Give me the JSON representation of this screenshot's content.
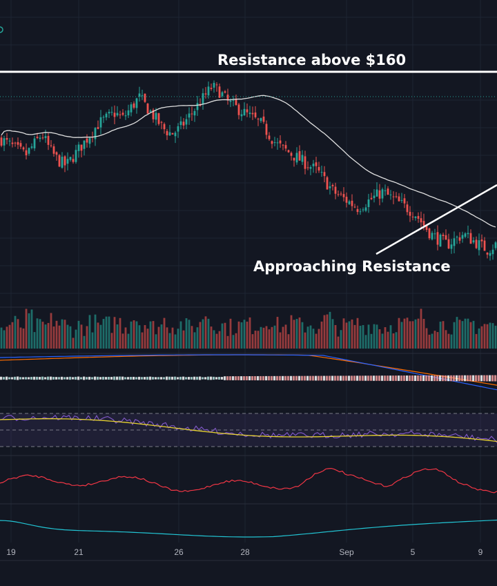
{
  "chart_data": {
    "type": "candlestick",
    "colors": {
      "background": "#131722",
      "up": "#26a69a",
      "down": "#ef5350",
      "grid": "#1e2433",
      "annotation": "#ffffff",
      "ma": "#e0e0e0",
      "macd_line": "#2962ff",
      "signal_line": "#ff6d00",
      "rsi": "#7e57c2",
      "rsi_ma": "#e8d32f",
      "osc_red": "#f23645",
      "osc_teal": "#22c5d4"
    },
    "x_axis": {
      "tick_labels": [
        "19",
        "21",
        "26",
        "28",
        "Sep",
        "5",
        "9"
      ]
    },
    "annotations": [
      {
        "text": "Resistance above $160",
        "kind": "horizontal-line"
      },
      {
        "text": "Approaching Resistance",
        "kind": "trendline"
      }
    ],
    "panes": [
      "price",
      "volume",
      "macd",
      "rsi",
      "oscillator",
      "trend-oscillator"
    ],
    "price_path": [
      152,
      151,
      150,
      149,
      151,
      153,
      150,
      148,
      147,
      149,
      151,
      153,
      155,
      156,
      157,
      156,
      158,
      160,
      158,
      156,
      154,
      153,
      154,
      156,
      158,
      160,
      162,
      161,
      159,
      158,
      157,
      156,
      155,
      153,
      151,
      150,
      149,
      148,
      147,
      146,
      144,
      142,
      141,
      140,
      139,
      140,
      141,
      142,
      141,
      140,
      139,
      138,
      136,
      134,
      133,
      132,
      133,
      134,
      133,
      132,
      131,
      132
    ],
    "volume_profile": [
      0.4,
      0.6,
      0.5,
      0.8,
      0.45,
      0.5,
      0.7,
      0.55,
      0.4,
      0.5,
      0.45,
      0.6,
      0.5,
      0.55,
      0.65,
      0.5,
      0.8,
      0.6,
      0.45,
      0.5,
      0.7,
      0.5,
      0.55,
      0.45,
      0.5,
      0.9,
      0.55,
      0.5,
      0.45,
      0.5,
      0.6,
      0.5,
      0.55,
      0.7,
      0.5,
      0.45,
      0.6,
      0.5,
      0.55,
      0.45,
      0.8,
      0.5,
      0.45,
      0.5,
      0.6,
      0.5,
      0.55,
      0.45,
      0.5,
      0.6,
      0.55,
      0.5,
      0.85,
      0.5,
      0.6,
      0.55,
      0.5,
      0.45,
      0.6,
      0.5,
      0.55,
      0.5
    ]
  }
}
